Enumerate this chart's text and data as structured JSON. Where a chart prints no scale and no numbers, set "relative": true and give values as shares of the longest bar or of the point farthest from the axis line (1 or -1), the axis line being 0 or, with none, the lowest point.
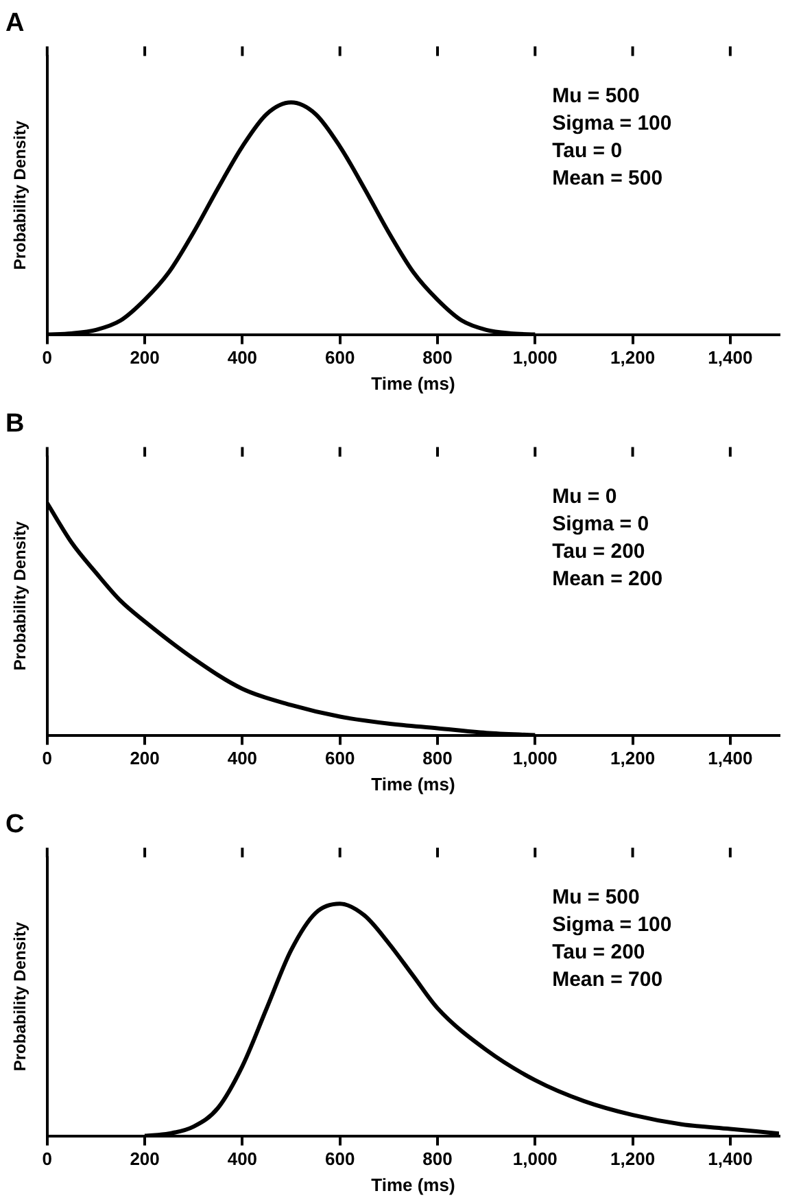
{
  "chart_data": [
    {
      "type": "line",
      "title": "A",
      "xlabel": "Time (ms)",
      "ylabel": "Probability Density",
      "relative": true,
      "xlim": [
        0,
        1500
      ],
      "xticks": [
        0,
        200,
        400,
        600,
        {
          "value": 800,
          "label": "800"
        },
        {
          "value": 1000,
          "label": "1,000"
        },
        {
          "value": 1200,
          "label": "1,200"
        },
        {
          "value": 1400,
          "label": "1,400"
        }
      ],
      "annotations": [
        "Mu = 500",
        "Sigma = 100",
        "Tau = 0",
        "Mean = 500"
      ],
      "series": [
        {
          "color": "#000000",
          "x": [
            0,
            50,
            100,
            150,
            200,
            250,
            300,
            350,
            400,
            450,
            500,
            550,
            600,
            650,
            700,
            750,
            800,
            850,
            900,
            950,
            1000
          ],
          "values": [
            0,
            0.005,
            0.02,
            0.06,
            0.15,
            0.27,
            0.44,
            0.63,
            0.81,
            0.95,
            1,
            0.95,
            0.81,
            0.63,
            0.44,
            0.27,
            0.15,
            0.06,
            0.02,
            0.005,
            0
          ]
        }
      ]
    },
    {
      "type": "line",
      "title": "B",
      "xlabel": "Time (ms)",
      "ylabel": "Probability Density",
      "relative": true,
      "xlim": [
        0,
        1500
      ],
      "xticks": [
        0,
        200,
        400,
        600,
        800,
        {
          "value": 1000,
          "label": "1,000"
        },
        {
          "value": 1200,
          "label": "1,200"
        },
        {
          "value": 1400,
          "label": "1,400"
        }
      ],
      "annotations": [
        "Mu = 0",
        "Sigma = 0",
        "Tau = 200",
        "Mean = 200"
      ],
      "series": [
        {
          "color": "#000000",
          "x": [
            0,
            50,
            100,
            150,
            200,
            300,
            400,
            500,
            600,
            700,
            800,
            900,
            1000
          ],
          "values": [
            1,
            0.83,
            0.7,
            0.58,
            0.49,
            0.33,
            0.2,
            0.13,
            0.08,
            0.05,
            0.03,
            0.01,
            0
          ]
        }
      ]
    },
    {
      "type": "line",
      "title": "C",
      "xlabel": "Time (ms)",
      "ylabel": "Probability Density",
      "relative": true,
      "xlim": [
        0,
        1500
      ],
      "xticks": [
        0,
        200,
        400,
        600,
        800,
        {
          "value": 1000,
          "label": "1,000"
        },
        {
          "value": 1200,
          "label": "1,200"
        },
        {
          "value": 1400,
          "label": "1,400"
        }
      ],
      "annotations": [
        "Mu = 500",
        "Sigma = 100",
        "Tau = 200",
        "Mean = 700"
      ],
      "series": [
        {
          "color": "#000000",
          "x": [
            200,
            250,
            300,
            350,
            400,
            450,
            500,
            550,
            600,
            650,
            700,
            750,
            800,
            900,
            1000,
            1100,
            1200,
            1300,
            1400,
            1500
          ],
          "values": [
            0,
            0.01,
            0.04,
            0.12,
            0.3,
            0.55,
            0.8,
            0.96,
            1,
            0.95,
            0.83,
            0.69,
            0.55,
            0.37,
            0.24,
            0.15,
            0.09,
            0.05,
            0.03,
            0.01
          ]
        }
      ]
    }
  ]
}
